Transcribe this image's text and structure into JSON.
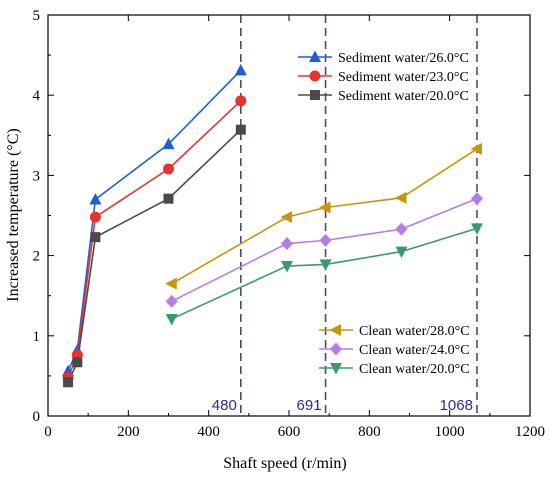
{
  "chart_data": {
    "type": "line",
    "xlabel": "Shaft speed (r/min)",
    "ylabel": "Increased temperature (°C)",
    "xlim": [
      0,
      1200
    ],
    "ylim": [
      0,
      5
    ],
    "xticks": [
      0,
      200,
      400,
      600,
      800,
      1000,
      1200
    ],
    "yticks": [
      0,
      1,
      2,
      3,
      4,
      5
    ],
    "grid": false,
    "vlines": [
      {
        "x": 480,
        "label": "480"
      },
      {
        "x": 691,
        "label": "691"
      },
      {
        "x": 1068,
        "label": "1068"
      }
    ],
    "legends": [
      {
        "placement": "top-right",
        "series": [
          0,
          1,
          2
        ]
      },
      {
        "placement": "bottom-right",
        "series": [
          3,
          4,
          5
        ]
      }
    ],
    "series": [
      {
        "name": "Sediment water/26.0°C",
        "color": "#1f5fd6",
        "marker": "triangle-up",
        "x": [
          50,
          73,
          118,
          300,
          480
        ],
        "y": [
          0.56,
          0.82,
          2.7,
          3.39,
          4.31
        ]
      },
      {
        "name": "Sediment water/23.0°C",
        "color": "#e8322d",
        "marker": "circle",
        "x": [
          50,
          73,
          118,
          300,
          480
        ],
        "y": [
          0.48,
          0.76,
          2.48,
          3.08,
          3.93
        ]
      },
      {
        "name": "Sediment water/20.0°C",
        "color": "#4a4a4a",
        "marker": "square",
        "x": [
          50,
          73,
          118,
          300,
          480
        ],
        "y": [
          0.42,
          0.67,
          2.23,
          2.71,
          3.57
        ]
      },
      {
        "name": "Clean water/28.0°C",
        "color": "#c8960c",
        "marker": "triangle-left",
        "x": [
          308,
          595,
          691,
          880,
          1068
        ],
        "y": [
          1.65,
          2.48,
          2.6,
          2.72,
          3.33
        ]
      },
      {
        "name": "Clean water/24.0°C",
        "color": "#b77be6",
        "marker": "diamond",
        "x": [
          308,
          595,
          691,
          880,
          1068
        ],
        "y": [
          1.43,
          2.15,
          2.19,
          2.33,
          2.71
        ]
      },
      {
        "name": "Clean water/20.0°C",
        "color": "#3a9a6e",
        "marker": "triangle-down",
        "x": [
          308,
          595,
          691,
          880,
          1068
        ],
        "y": [
          1.21,
          1.87,
          1.89,
          2.05,
          2.34
        ]
      }
    ]
  }
}
